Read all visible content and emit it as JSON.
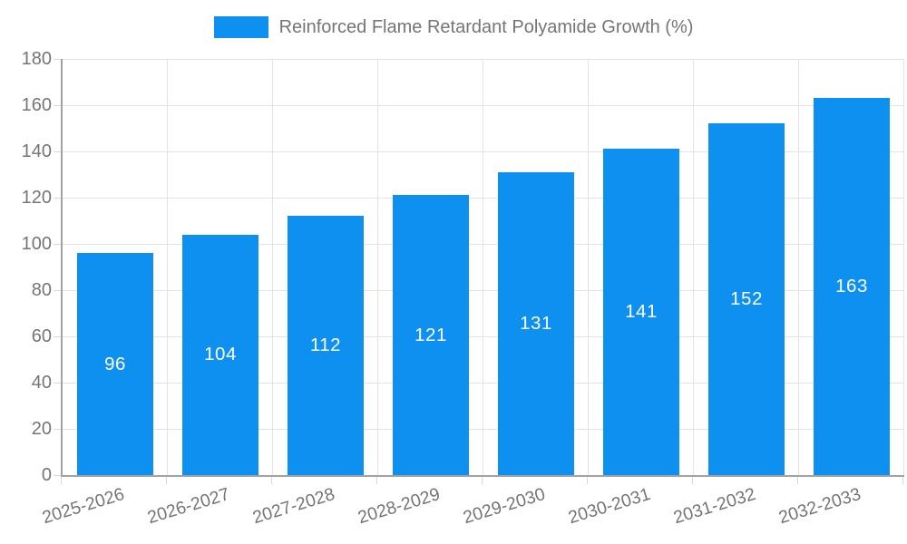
{
  "chart_data": {
    "type": "bar",
    "title": "Reinforced Flame Retardant Polyamide Growth (%)",
    "categories": [
      "2025-2026",
      "2026-2027",
      "2027-2028",
      "2028-2029",
      "2029-2030",
      "2030-2031",
      "2031-2032",
      "2032-2033"
    ],
    "values": [
      96,
      104,
      112,
      121,
      131,
      141,
      152,
      163
    ],
    "xlabel": "",
    "ylabel": "",
    "ylim": [
      0,
      180
    ],
    "yticks": [
      0,
      20,
      40,
      60,
      80,
      100,
      120,
      140,
      160,
      180
    ],
    "grid": true,
    "legend_position": "top",
    "legend_entries": [
      "Reinforced Flame Retardant Polyamide Growth (%)"
    ],
    "bar_labels_inside": true
  },
  "legend": {
    "label": "Reinforced Flame Retardant Polyamide Growth (%)"
  },
  "colors": {
    "bar": "#0e90f0",
    "grid": "#e3e3e3",
    "tick": "#d9d9d9",
    "axis": "#a2a2a2",
    "text": "#757575",
    "value_label": "#ffffff",
    "background": "#ffffff"
  }
}
